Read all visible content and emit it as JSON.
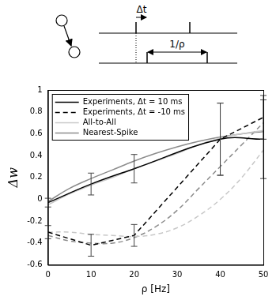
{
  "chart_data": {
    "type": "line",
    "annotations": [
      "Δt",
      "1/ρ"
    ],
    "x_label": "ρ [Hz]",
    "y_label": "Δw",
    "xlim": [
      0,
      50
    ],
    "xticks": [
      0,
      10,
      20,
      30,
      40,
      50
    ],
    "ylim": [
      -0.6,
      1
    ],
    "yticks": [
      -0.6,
      -0.4,
      -0.2,
      0,
      0.2,
      0.4,
      0.6,
      0.8,
      1
    ],
    "grid": false,
    "legend": "upper left",
    "series": [
      {
        "name": "Experiments, Δt = 10 ms",
        "color": "#000000",
        "line_style": "solid",
        "x": [
          0,
          10,
          20,
          40,
          50
        ],
        "values": [
          -0.03,
          0.14,
          0.28,
          0.55,
          0.55
        ],
        "errors": [
          0.04,
          0.1,
          0.13,
          0.33,
          0.36
        ]
      },
      {
        "name": "Experiments, Δt = -10 ms",
        "color": "#000000",
        "line_style": "dashed",
        "x": [
          0,
          10,
          20,
          40,
          50
        ],
        "values": [
          -0.3,
          -0.42,
          -0.33,
          0.55,
          0.75
        ],
        "errors": [
          0.06,
          0.1,
          0.1,
          0.33,
          0.2
        ]
      },
      {
        "name": "All-to-All",
        "color": "#c8c8c8",
        "line_style": "solid",
        "x": [
          0,
          5,
          10,
          15,
          20,
          25,
          30,
          35,
          40,
          45,
          50
        ],
        "values": [
          -0.05,
          0.05,
          0.13,
          0.2,
          0.28,
          0.35,
          0.42,
          0.5,
          0.56,
          0.6,
          0.63
        ]
      },
      {
        "name": "Nearest-Spike",
        "color": "#8c8c8c",
        "line_style": "solid",
        "x": [
          0,
          5,
          10,
          15,
          20,
          25,
          30,
          35,
          40,
          45,
          50
        ],
        "values": [
          -0.02,
          0.1,
          0.19,
          0.27,
          0.35,
          0.42,
          0.48,
          0.53,
          0.57,
          0.6,
          0.62
        ]
      },
      {
        "name": "All-to-All",
        "color": "#c8c8c8",
        "line_style": "dashed",
        "x": [
          0,
          5,
          10,
          15,
          20,
          25,
          30,
          35,
          40,
          45,
          50
        ],
        "values": [
          -0.3,
          -0.3,
          -0.32,
          -0.33,
          -0.34,
          -0.32,
          -0.26,
          -0.15,
          0.0,
          0.2,
          0.45
        ]
      },
      {
        "name": "Nearest-Spike",
        "color": "#8c8c8c",
        "line_style": "dashed",
        "x": [
          0,
          5,
          10,
          15,
          20,
          25,
          30,
          35,
          40,
          45,
          50
        ],
        "values": [
          -0.33,
          -0.38,
          -0.4,
          -0.4,
          -0.35,
          -0.25,
          -0.1,
          0.1,
          0.3,
          0.5,
          0.7
        ]
      }
    ]
  }
}
